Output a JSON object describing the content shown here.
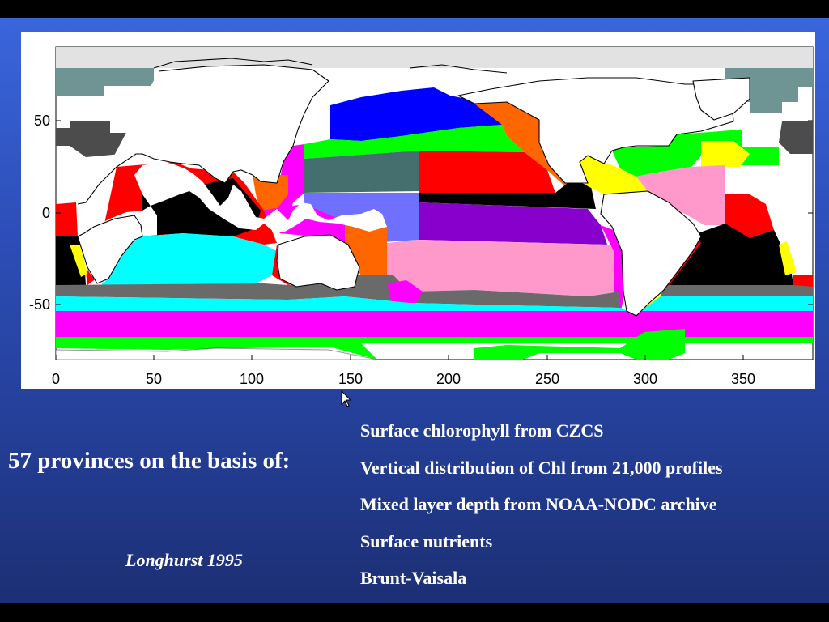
{
  "map": {
    "x_ticks": [
      "0",
      "50",
      "100",
      "150",
      "200",
      "250",
      "300",
      "350"
    ],
    "y_ticks": [
      "50",
      "0",
      "-50"
    ],
    "colors": {
      "land": "#ffffff",
      "ice": "#e2e2e2",
      "arctic": "#6e9494",
      "subpolar": "#4c4c4c",
      "red": "#ff0000",
      "black": "#000000",
      "cyan": "#00ffff",
      "gray": "#6a6a6a",
      "magenta": "#ff00ff",
      "green": "#00ff00",
      "blue": "#0000ff",
      "orange": "#ff6600",
      "teal": "#456e6e",
      "lavender": "#7070ff",
      "purple": "#8800cc",
      "pink": "#ff99cc",
      "yellow": "#ffff00"
    }
  },
  "lead": "57 provinces on the basis of:",
  "citation": "Longhurst 1995",
  "basis": [
    "Surface chlorophyll from CZCS",
    "Vertical distribution of Chl from 21,000 profiles",
    "Mixed layer depth from NOAA-NODC archive",
    "Surface nutrients",
    "Brunt-Vaisala"
  ],
  "icons": {
    "pointer": "mouse-pointer-icon"
  }
}
